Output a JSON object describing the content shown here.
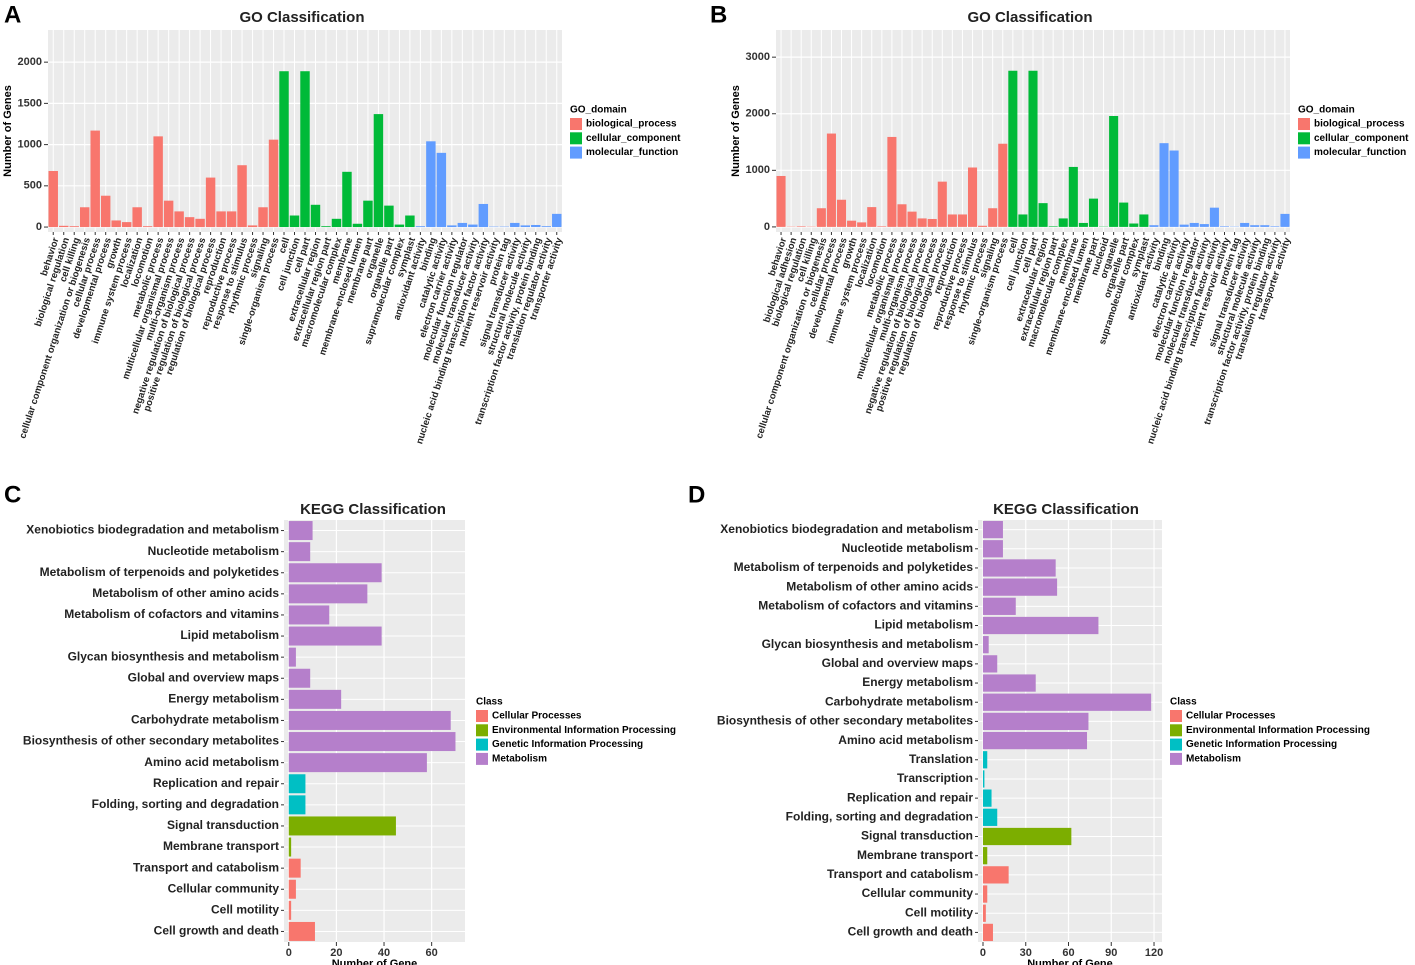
{
  "chart_data": [
    {
      "panel": "A",
      "type": "bar",
      "title": "GO Classification",
      "y_label": "Number of Genes",
      "legend_title": "GO_domain",
      "grid": true,
      "categories": [
        "behavior",
        "biological regulation",
        "cell killing",
        "cellular component organization or biogenesis",
        "cellular process",
        "developmental process",
        "growth",
        "immune system process",
        "localization",
        "locomotion",
        "metabolic process",
        "multicellular organismal process",
        "multi-organism process",
        "negative regulation of biological process",
        "positive regulation of biological process",
        "regulation of biological process",
        "reproduction",
        "reproductive process",
        "response to stimulus",
        "rhythmic process",
        "signaling",
        "single-organism process",
        "cell",
        "cell junction",
        "cell part",
        "extracellular region",
        "extracellular region part",
        "macromolecular complex",
        "membrane",
        "membrane-enclosed lumen",
        "membrane part",
        "organelle",
        "organelle part",
        "supramolecular complex",
        "symplast",
        "antioxidant activity",
        "binding",
        "catalytic activity",
        "electron carrier activity",
        "molecular function regulator",
        "molecular transducer activity",
        "nucleic acid binding transcription factor activity",
        "nutrient reservoir activity",
        "protein tag",
        "signal transducer activity",
        "structural molecule activity",
        "transcription factor activity, protein binding",
        "translation regulator activity",
        "transporter activity"
      ],
      "series": [
        {
          "name": "biological_process",
          "color": "#f8766d",
          "values": [
            680,
            15,
            10,
            240,
            1170,
            380,
            80,
            60,
            240,
            10,
            1100,
            320,
            190,
            120,
            100,
            600,
            190,
            190,
            750,
            20,
            240,
            1060,
            null,
            null,
            null,
            null,
            null,
            null,
            null,
            null,
            null,
            null,
            null,
            null,
            null,
            null,
            null,
            null,
            null,
            null,
            null,
            null,
            null,
            null,
            null,
            null,
            null,
            null,
            null
          ]
        },
        {
          "name": "cellular_component",
          "color": "#00ba38",
          "values": [
            null,
            null,
            null,
            null,
            null,
            null,
            null,
            null,
            null,
            null,
            null,
            null,
            null,
            null,
            null,
            null,
            null,
            null,
            null,
            null,
            null,
            null,
            1890,
            140,
            1890,
            270,
            10,
            100,
            670,
            40,
            320,
            1370,
            260,
            30,
            140,
            null,
            null,
            null,
            null,
            null,
            null,
            null,
            null,
            null,
            null,
            null,
            null,
            null,
            null
          ]
        },
        {
          "name": "molecular_function",
          "color": "#619cff",
          "values": [
            null,
            null,
            null,
            null,
            null,
            null,
            null,
            null,
            null,
            null,
            null,
            null,
            null,
            null,
            null,
            null,
            null,
            null,
            null,
            null,
            null,
            null,
            null,
            null,
            null,
            null,
            null,
            null,
            null,
            null,
            null,
            null,
            null,
            null,
            null,
            10,
            1040,
            900,
            20,
            50,
            30,
            280,
            5,
            5,
            50,
            20,
            25,
            10,
            160
          ]
        }
      ],
      "ylim": [
        -60,
        2390
      ],
      "yticks": [
        0,
        500,
        1000,
        1500,
        2000
      ]
    },
    {
      "panel": "B",
      "type": "bar",
      "title": "GO Classification",
      "y_label": "Number of Genes",
      "legend_title": "GO_domain",
      "grid": true,
      "categories": [
        "behavior",
        "biological adhesion",
        "biological regulation",
        "cell killing",
        "cellular component organization or biogenesis",
        "cellular process",
        "developmental process",
        "growth",
        "immune system process",
        "localization",
        "locomotion",
        "metabolic process",
        "multicellular organismal process",
        "multi-organism process",
        "negative regulation of biological process",
        "positive regulation of biological process",
        "regulation of biological process",
        "reproduction",
        "reproductive process",
        "response to stimulus",
        "rhythmic process",
        "signaling",
        "single-organism process",
        "cell",
        "cell junction",
        "cell part",
        "extracellular region",
        "extracellular region part",
        "macromolecular complex",
        "membrane",
        "membrane-enclosed lumen",
        "membrane part",
        "nucleoid",
        "organelle",
        "organelle part",
        "supramolecular complex",
        "symplast",
        "antioxidant activity",
        "binding",
        "catalytic activity",
        "electron carrier activity",
        "molecular function regulator",
        "molecular transducer activity",
        "nucleic acid binding transcription factor activity",
        "nutrient reservoir activity",
        "protein tag",
        "signal transducer activity",
        "structural molecule activity",
        "transcription factor activity, protein binding",
        "translation regulator activity",
        "transporter activity"
      ],
      "series": [
        {
          "name": "biological_process",
          "color": "#f8766d",
          "values": [
            900,
            5,
            10,
            5,
            330,
            1650,
            480,
            110,
            80,
            350,
            10,
            1590,
            400,
            270,
            150,
            140,
            800,
            220,
            220,
            1050,
            20,
            330,
            1470,
            null,
            null,
            null,
            null,
            null,
            null,
            null,
            null,
            null,
            null,
            null,
            null,
            null,
            null,
            null,
            null,
            null,
            null,
            null,
            null,
            null,
            null,
            null,
            null,
            null,
            null,
            null,
            null
          ]
        },
        {
          "name": "cellular_component",
          "color": "#00ba38",
          "values": [
            null,
            null,
            null,
            null,
            null,
            null,
            null,
            null,
            null,
            null,
            null,
            null,
            null,
            null,
            null,
            null,
            null,
            null,
            null,
            null,
            null,
            null,
            null,
            2760,
            220,
            2760,
            420,
            10,
            150,
            1060,
            70,
            500,
            5,
            1960,
            430,
            60,
            220,
            null,
            null,
            null,
            null,
            null,
            null,
            null,
            null,
            null,
            null,
            null,
            null,
            null,
            null
          ]
        },
        {
          "name": "molecular_function",
          "color": "#619cff",
          "values": [
            null,
            null,
            null,
            null,
            null,
            null,
            null,
            null,
            null,
            null,
            null,
            null,
            null,
            null,
            null,
            null,
            null,
            null,
            null,
            null,
            null,
            null,
            null,
            null,
            null,
            null,
            null,
            null,
            null,
            null,
            null,
            null,
            null,
            null,
            null,
            null,
            null,
            30,
            1480,
            1350,
            40,
            70,
            50,
            340,
            10,
            5,
            70,
            30,
            30,
            10,
            230
          ]
        }
      ],
      "ylim": [
        -90,
        3480
      ],
      "yticks": [
        0,
        1000,
        2000,
        3000
      ]
    },
    {
      "panel": "C",
      "type": "barh",
      "title": "KEGG Classification",
      "x_label": "Number of Gene",
      "legend_title": "Class",
      "grid": true,
      "categories": [
        "Xenobiotics biodegradation and metabolism",
        "Nucleotide metabolism",
        "Metabolism of terpenoids and polyketides",
        "Metabolism of other amino acids",
        "Metabolism of cofactors and vitamins",
        "Lipid metabolism",
        "Glycan biosynthesis and metabolism",
        "Global and overview maps",
        "Energy metabolism",
        "Carbohydrate metabolism",
        "Biosynthesis of other secondary metabolites",
        "Amino acid metabolism",
        "Replication and repair",
        "Folding, sorting and degradation",
        "Signal transduction",
        "Membrane transport",
        "Transport and catabolism",
        "Cellular community",
        "Cell motility",
        "Cell growth and death"
      ],
      "series": [
        {
          "name": "Cellular Processes",
          "color": "#f8766d",
          "values": [
            null,
            null,
            null,
            null,
            null,
            null,
            null,
            null,
            null,
            null,
            null,
            null,
            null,
            null,
            null,
            null,
            5,
            3,
            1,
            11
          ]
        },
        {
          "name": "Environmental Information Processing",
          "color": "#7cae00",
          "values": [
            null,
            null,
            null,
            null,
            null,
            null,
            null,
            null,
            null,
            null,
            null,
            null,
            null,
            null,
            45,
            1,
            null,
            null,
            null,
            null
          ]
        },
        {
          "name": "Genetic Information Processing",
          "color": "#00bfc4",
          "values": [
            null,
            null,
            null,
            null,
            null,
            null,
            null,
            null,
            null,
            null,
            null,
            null,
            7,
            7,
            null,
            null,
            null,
            null,
            null,
            null
          ]
        },
        {
          "name": "Metabolism",
          "color": "#b57fcb",
          "values": [
            10,
            9,
            39,
            33,
            17,
            39,
            3,
            9,
            22,
            68,
            70,
            58,
            null,
            null,
            null,
            null,
            null,
            null,
            null,
            null
          ]
        }
      ],
      "xlim": [
        -2,
        74
      ],
      "xticks": [
        0,
        20,
        40,
        60
      ]
    },
    {
      "panel": "D",
      "type": "barh",
      "title": "KEGG Classification",
      "x_label": "Number of Gene",
      "legend_title": "Class",
      "grid": true,
      "categories": [
        "Xenobiotics biodegradation and metabolism",
        "Nucleotide metabolism",
        "Metabolism of terpenoids and polyketides",
        "Metabolism of other amino acids",
        "Metabolism of cofactors and vitamins",
        "Lipid metabolism",
        "Glycan biosynthesis and metabolism",
        "Global and overview maps",
        "Energy metabolism",
        "Carbohydrate metabolism",
        "Biosynthesis of other secondary metabolites",
        "Amino acid metabolism",
        "Translation",
        "Transcription",
        "Replication and repair",
        "Folding, sorting and degradation",
        "Signal transduction",
        "Membrane transport",
        "Transport and catabolism",
        "Cellular community",
        "Cell motility",
        "Cell growth and death"
      ],
      "series": [
        {
          "name": "Cellular Processes",
          "color": "#f8766d",
          "values": [
            null,
            null,
            null,
            null,
            null,
            null,
            null,
            null,
            null,
            null,
            null,
            null,
            null,
            null,
            null,
            null,
            null,
            null,
            18,
            3,
            2,
            7
          ]
        },
        {
          "name": "Environmental Information Processing",
          "color": "#7cae00",
          "values": [
            null,
            null,
            null,
            null,
            null,
            null,
            null,
            null,
            null,
            null,
            null,
            null,
            null,
            null,
            null,
            null,
            62,
            3,
            null,
            null,
            null,
            null
          ]
        },
        {
          "name": "Genetic Information Processing",
          "color": "#00bfc4",
          "values": [
            null,
            null,
            null,
            null,
            null,
            null,
            null,
            null,
            null,
            null,
            null,
            null,
            3,
            1,
            6,
            10,
            null,
            null,
            null,
            null,
            null,
            null
          ]
        },
        {
          "name": "Metabolism",
          "color": "#b57fcb",
          "values": [
            14,
            14,
            51,
            52,
            23,
            81,
            4,
            10,
            37,
            118,
            74,
            73,
            null,
            null,
            null,
            null,
            null,
            null,
            null,
            null,
            null,
            null
          ]
        }
      ],
      "xlim": [
        -3.5,
        125.6
      ],
      "xticks": [
        0,
        30,
        60,
        90,
        120
      ]
    }
  ]
}
